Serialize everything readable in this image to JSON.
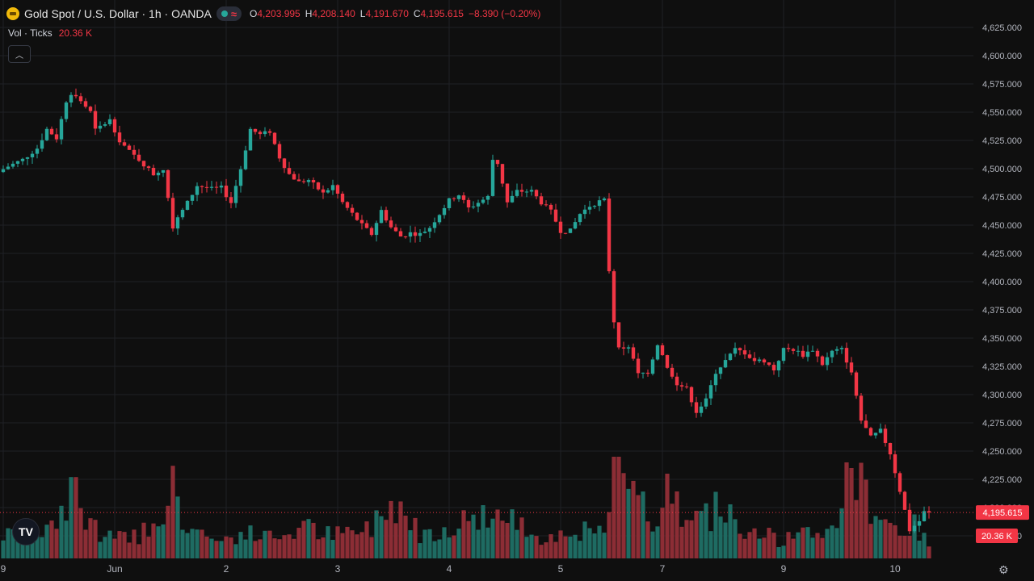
{
  "header": {
    "symbol_title": "Gold Spot / U.S. Dollar · 1h · OANDA",
    "ohlc": {
      "o_label": "O",
      "o_value": "4,203.995",
      "h_label": "H",
      "h_value": "4,208.140",
      "l_label": "L",
      "l_value": "4,191.670",
      "c_label": "C",
      "c_value": "4,195.615",
      "change": "−8.390 (−0.20%)"
    }
  },
  "volume_legend": {
    "label": "Vol · Ticks",
    "value": "20.36 K"
  },
  "icons": {
    "symbol": "gold-coin-icon",
    "market_open": "market-open-dot-icon",
    "wave": "wave-icon",
    "collapse": "chevron-up-icon",
    "logo": "tradingview-logo-icon",
    "settings": "gear-icon"
  },
  "colors": {
    "up": "#26a69a",
    "down": "#f23645",
    "background": "#0f0f0f",
    "grid": "#1f2126",
    "axis_text": "#b2b5be"
  },
  "chart_data": {
    "type": "candlestick",
    "y_axis": {
      "ticks": [
        4175,
        4200,
        4225,
        4250,
        4275,
        4300,
        4325,
        4350,
        4375,
        4400,
        4425,
        4450,
        4475,
        4500,
        4525,
        4550,
        4575,
        4600,
        4625
      ],
      "tick_labels": [
        "4,175.000",
        "4,200.000",
        "4,225.000",
        "4,250.000",
        "4,275.000",
        "4,300.000",
        "4,325.000",
        "4,350.000",
        "4,375.000",
        "4,400.000",
        "4,425.000",
        "4,450.000",
        "4,475.000",
        "4,500.000",
        "4,525.000",
        "4,550.000",
        "4,575.000",
        "4,600.000",
        "4,625.000"
      ],
      "range": [
        4155,
        4635
      ]
    },
    "x_axis": {
      "labels": [
        {
          "text": "9",
          "bar": 0
        },
        {
          "text": "Jun",
          "bar": 23
        },
        {
          "text": "2",
          "bar": 46
        },
        {
          "text": "3",
          "bar": 69
        },
        {
          "text": "4",
          "bar": 92
        },
        {
          "text": "5",
          "bar": 115
        },
        {
          "text": "7",
          "bar": 136
        },
        {
          "text": "9",
          "bar": 161
        },
        {
          "text": "10",
          "bar": 184
        }
      ],
      "bar_count": 192
    },
    "last_price": {
      "value": 4195.615,
      "label": "4,195.615"
    },
    "last_volume": {
      "label": "20.36 K"
    },
    "anchors": [
      [
        0,
        4497
      ],
      [
        2,
        4502
      ],
      [
        5,
        4508
      ],
      [
        8,
        4518
      ],
      [
        10,
        4535
      ],
      [
        12,
        4527
      ],
      [
        14,
        4560
      ],
      [
        15,
        4567
      ],
      [
        17,
        4560
      ],
      [
        19,
        4550
      ],
      [
        20,
        4534
      ],
      [
        23,
        4543
      ],
      [
        25,
        4525
      ],
      [
        27,
        4515
      ],
      [
        29,
        4508
      ],
      [
        32,
        4495
      ],
      [
        34,
        4500
      ],
      [
        36,
        4449
      ],
      [
        39,
        4470
      ],
      [
        41,
        4485
      ],
      [
        44,
        4482
      ],
      [
        46,
        4483
      ],
      [
        48,
        4470
      ],
      [
        50,
        4500
      ],
      [
        52,
        4535
      ],
      [
        54,
        4530
      ],
      [
        56,
        4533
      ],
      [
        58,
        4510
      ],
      [
        60,
        4495
      ],
      [
        62,
        4488
      ],
      [
        64,
        4490
      ],
      [
        67,
        4478
      ],
      [
        69,
        4485
      ],
      [
        71,
        4470
      ],
      [
        73,
        4460
      ],
      [
        75,
        4450
      ],
      [
        77,
        4442
      ],
      [
        79,
        4463
      ],
      [
        81,
        4448
      ],
      [
        83,
        4440
      ],
      [
        85,
        4443
      ],
      [
        87,
        4442
      ],
      [
        89,
        4448
      ],
      [
        91,
        4460
      ],
      [
        93,
        4472
      ],
      [
        95,
        4477
      ],
      [
        97,
        4465
      ],
      [
        99,
        4470
      ],
      [
        101,
        4475
      ],
      [
        102,
        4508
      ],
      [
        103,
        4505
      ],
      [
        105,
        4470
      ],
      [
        107,
        4480
      ],
      [
        110,
        4480
      ],
      [
        112,
        4470
      ],
      [
        114,
        4462
      ],
      [
        116,
        4445
      ],
      [
        118,
        4445
      ],
      [
        120,
        4460
      ],
      [
        122,
        4467
      ],
      [
        124,
        4471
      ],
      [
        125,
        4472
      ],
      [
        126,
        4410
      ],
      [
        127,
        4365
      ],
      [
        128,
        4340
      ],
      [
        130,
        4343
      ],
      [
        132,
        4318
      ],
      [
        134,
        4320
      ],
      [
        136,
        4345
      ],
      [
        138,
        4325
      ],
      [
        140,
        4310
      ],
      [
        142,
        4305
      ],
      [
        144,
        4285
      ],
      [
        146,
        4295
      ],
      [
        148,
        4320
      ],
      [
        150,
        4330
      ],
      [
        152,
        4340
      ],
      [
        154,
        4337
      ],
      [
        156,
        4330
      ],
      [
        158,
        4330
      ],
      [
        160,
        4322
      ],
      [
        162,
        4340
      ],
      [
        164,
        4340
      ],
      [
        166,
        4335
      ],
      [
        168,
        4340
      ],
      [
        170,
        4327
      ],
      [
        172,
        4338
      ],
      [
        174,
        4340
      ],
      [
        176,
        4320
      ],
      [
        178,
        4277
      ],
      [
        180,
        4262
      ],
      [
        182,
        4268
      ],
      [
        184,
        4248
      ],
      [
        186,
        4215
      ],
      [
        188,
        4180
      ],
      [
        190,
        4188
      ],
      [
        191,
        4196
      ],
      [
        192,
        4195
      ]
    ],
    "volume_anchors": [
      [
        0,
        20
      ],
      [
        10,
        25
      ],
      [
        14,
        58
      ],
      [
        16,
        35
      ],
      [
        22,
        18
      ],
      [
        28,
        20
      ],
      [
        35,
        55
      ],
      [
        38,
        30
      ],
      [
        44,
        15
      ],
      [
        50,
        22
      ],
      [
        56,
        18
      ],
      [
        62,
        28
      ],
      [
        68,
        20
      ],
      [
        75,
        25
      ],
      [
        81,
        52
      ],
      [
        86,
        22
      ],
      [
        92,
        28
      ],
      [
        100,
        40
      ],
      [
        106,
        30
      ],
      [
        112,
        18
      ],
      [
        118,
        26
      ],
      [
        124,
        20
      ],
      [
        126,
        70
      ],
      [
        130,
        55
      ],
      [
        134,
        30
      ],
      [
        138,
        48
      ],
      [
        142,
        30
      ],
      [
        148,
        45
      ],
      [
        152,
        30
      ],
      [
        156,
        25
      ],
      [
        160,
        15
      ],
      [
        164,
        20
      ],
      [
        170,
        22
      ],
      [
        174,
        50
      ],
      [
        176,
        70
      ],
      [
        178,
        55
      ],
      [
        182,
        35
      ],
      [
        185,
        25
      ],
      [
        188,
        28
      ],
      [
        191,
        12
      ]
    ],
    "volume_spikes": [
      [
        126,
        90
      ],
      [
        127,
        90
      ],
      [
        137,
        75
      ],
      [
        35,
        82
      ],
      [
        14,
        72
      ],
      [
        15,
        72
      ],
      [
        174,
        85
      ],
      [
        175,
        80
      ]
    ]
  }
}
